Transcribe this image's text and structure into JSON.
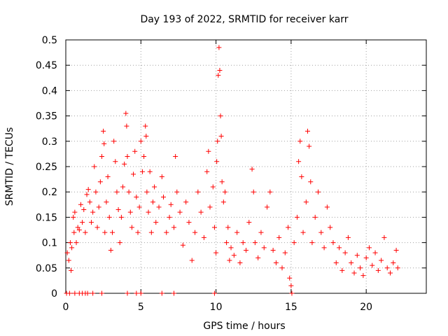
{
  "chart_data": {
    "type": "scatter",
    "title": "Day 193 of 2022, SRMTID for receiver karr",
    "xlabel": "GPS time / hours",
    "ylabel": "SRMTID / TECUs",
    "xlim": [
      0,
      24
    ],
    "ylim": [
      0,
      0.5
    ],
    "xticks": [
      0,
      5,
      10,
      15,
      20
    ],
    "xtick_labels": [
      "0",
      "5",
      "10",
      "15",
      "20"
    ],
    "yticks": [
      0,
      0.05,
      0.1,
      0.15,
      0.2,
      0.25,
      0.3,
      0.35,
      0.4,
      0.45,
      0.5
    ],
    "ytick_labels": [
      "0",
      "0.05",
      "0.1",
      "0.15",
      "0.2",
      "0.25",
      "0.3",
      "0.35",
      "0.4",
      "0.45",
      "0.5"
    ],
    "grid": true,
    "marker": "+",
    "color": "#ff0000",
    "series": [
      {
        "points": [
          [
            0.1,
            0.08
          ],
          [
            0.2,
            0.065
          ],
          [
            0.3,
            0.1
          ],
          [
            0.35,
            0.045
          ],
          [
            0.4,
            0.09
          ],
          [
            0.5,
            0.15
          ],
          [
            0.55,
            0.12
          ],
          [
            0.6,
            0.16
          ],
          [
            0.7,
            0.1
          ],
          [
            0.8,
            0.13
          ],
          [
            0.9,
            0.125
          ],
          [
            1.0,
            0.175
          ],
          [
            1.1,
            0.14
          ],
          [
            1.2,
            0.165
          ],
          [
            1.3,
            0.12
          ],
          [
            1.4,
            0.195
          ],
          [
            1.5,
            0.205
          ],
          [
            1.6,
            0.18
          ],
          [
            1.7,
            0.14
          ],
          [
            1.8,
            0.16
          ],
          [
            1.9,
            0.25
          ],
          [
            2.0,
            0.2
          ],
          [
            2.1,
            0.13
          ],
          [
            2.2,
            0.17
          ],
          [
            2.3,
            0.22
          ],
          [
            2.4,
            0.27
          ],
          [
            2.5,
            0.32
          ],
          [
            2.55,
            0.295
          ],
          [
            2.6,
            0.12
          ],
          [
            2.7,
            0.18
          ],
          [
            2.8,
            0.23
          ],
          [
            2.9,
            0.15
          ],
          [
            3.0,
            0.085
          ],
          [
            3.1,
            0.12
          ],
          [
            3.2,
            0.3
          ],
          [
            3.3,
            0.26
          ],
          [
            3.4,
            0.2
          ],
          [
            3.5,
            0.165
          ],
          [
            3.6,
            0.1
          ],
          [
            3.7,
            0.15
          ],
          [
            3.8,
            0.21
          ],
          [
            3.9,
            0.255
          ],
          [
            4.0,
            0.355
          ],
          [
            4.05,
            0.33
          ],
          [
            4.1,
            0.27
          ],
          [
            4.2,
            0.2
          ],
          [
            4.3,
            0.16
          ],
          [
            4.4,
            0.13
          ],
          [
            4.5,
            0.235
          ],
          [
            4.6,
            0.28
          ],
          [
            4.7,
            0.19
          ],
          [
            4.8,
            0.12
          ],
          [
            4.9,
            0.17
          ],
          [
            5.0,
            0.3
          ],
          [
            5.1,
            0.24
          ],
          [
            5.2,
            0.27
          ],
          [
            5.3,
            0.33
          ],
          [
            5.35,
            0.31
          ],
          [
            5.4,
            0.2
          ],
          [
            5.5,
            0.16
          ],
          [
            5.6,
            0.24
          ],
          [
            5.7,
            0.12
          ],
          [
            5.8,
            0.18
          ],
          [
            5.9,
            0.21
          ],
          [
            6.0,
            0.14
          ],
          [
            6.2,
            0.17
          ],
          [
            6.4,
            0.23
          ],
          [
            6.5,
            0.19
          ],
          [
            6.7,
            0.12
          ],
          [
            6.9,
            0.15
          ],
          [
            7.0,
            0.175
          ],
          [
            7.2,
            0.13
          ],
          [
            7.3,
            0.27
          ],
          [
            7.4,
            0.2
          ],
          [
            7.6,
            0.16
          ],
          [
            7.8,
            0.095
          ],
          [
            8.0,
            0.18
          ],
          [
            8.2,
            0.14
          ],
          [
            8.4,
            0.065
          ],
          [
            8.6,
            0.12
          ],
          [
            8.8,
            0.2
          ],
          [
            9.0,
            0.16
          ],
          [
            9.2,
            0.11
          ],
          [
            9.4,
            0.24
          ],
          [
            9.5,
            0.28
          ],
          [
            9.6,
            0.17
          ],
          [
            9.8,
            0.21
          ],
          [
            9.9,
            0.13
          ],
          [
            10.0,
            0.08
          ],
          [
            10.05,
            0.26
          ],
          [
            10.1,
            0.3
          ],
          [
            10.15,
            0.43
          ],
          [
            10.2,
            0.485
          ],
          [
            10.25,
            0.44
          ],
          [
            10.3,
            0.35
          ],
          [
            10.35,
            0.31
          ],
          [
            10.4,
            0.22
          ],
          [
            10.5,
            0.18
          ],
          [
            10.6,
            0.2
          ],
          [
            10.7,
            0.1
          ],
          [
            10.8,
            0.13
          ],
          [
            10.9,
            0.065
          ],
          [
            11.0,
            0.09
          ],
          [
            11.2,
            0.075
          ],
          [
            11.4,
            0.12
          ],
          [
            11.6,
            0.06
          ],
          [
            11.8,
            0.1
          ],
          [
            12.0,
            0.085
          ],
          [
            12.2,
            0.14
          ],
          [
            12.4,
            0.245
          ],
          [
            12.5,
            0.2
          ],
          [
            12.6,
            0.1
          ],
          [
            12.8,
            0.07
          ],
          [
            13.0,
            0.12
          ],
          [
            13.2,
            0.09
          ],
          [
            13.4,
            0.17
          ],
          [
            13.6,
            0.2
          ],
          [
            13.8,
            0.085
          ],
          [
            14.0,
            0.06
          ],
          [
            14.2,
            0.11
          ],
          [
            14.4,
            0.05
          ],
          [
            14.6,
            0.08
          ],
          [
            14.8,
            0.13
          ],
          [
            14.9,
            0.03
          ],
          [
            15.0,
            0.015
          ],
          [
            15.2,
            0.1
          ],
          [
            15.4,
            0.15
          ],
          [
            15.5,
            0.26
          ],
          [
            15.6,
            0.3
          ],
          [
            15.7,
            0.23
          ],
          [
            15.8,
            0.12
          ],
          [
            16.0,
            0.18
          ],
          [
            16.1,
            0.32
          ],
          [
            16.2,
            0.29
          ],
          [
            16.3,
            0.22
          ],
          [
            16.4,
            0.1
          ],
          [
            16.6,
            0.15
          ],
          [
            16.8,
            0.2
          ],
          [
            17.0,
            0.12
          ],
          [
            17.2,
            0.09
          ],
          [
            17.4,
            0.17
          ],
          [
            17.6,
            0.13
          ],
          [
            17.8,
            0.1
          ],
          [
            18.0,
            0.06
          ],
          [
            18.2,
            0.09
          ],
          [
            18.4,
            0.045
          ],
          [
            18.6,
            0.08
          ],
          [
            18.8,
            0.11
          ],
          [
            19.0,
            0.06
          ],
          [
            19.2,
            0.04
          ],
          [
            19.4,
            0.075
          ],
          [
            19.6,
            0.05
          ],
          [
            19.8,
            0.035
          ],
          [
            20.0,
            0.07
          ],
          [
            20.2,
            0.09
          ],
          [
            20.4,
            0.055
          ],
          [
            20.6,
            0.08
          ],
          [
            20.8,
            0.045
          ],
          [
            21.0,
            0.065
          ],
          [
            21.2,
            0.11
          ],
          [
            21.4,
            0.05
          ],
          [
            21.6,
            0.04
          ],
          [
            21.8,
            0.06
          ],
          [
            22.0,
            0.085
          ],
          [
            22.1,
            0.05
          ]
        ]
      },
      {
        "points": [
          [
            0.05,
            0
          ],
          [
            0.25,
            0
          ],
          [
            0.6,
            0
          ],
          [
            0.9,
            0
          ],
          [
            1.1,
            0
          ],
          [
            1.3,
            0
          ],
          [
            1.45,
            0
          ],
          [
            1.8,
            0
          ],
          [
            2.4,
            0
          ],
          [
            4.1,
            0
          ],
          [
            4.7,
            0
          ],
          [
            5.0,
            0
          ],
          [
            6.4,
            0
          ],
          [
            7.2,
            0
          ],
          [
            9.9,
            0
          ],
          [
            15.05,
            0
          ]
        ]
      }
    ]
  }
}
